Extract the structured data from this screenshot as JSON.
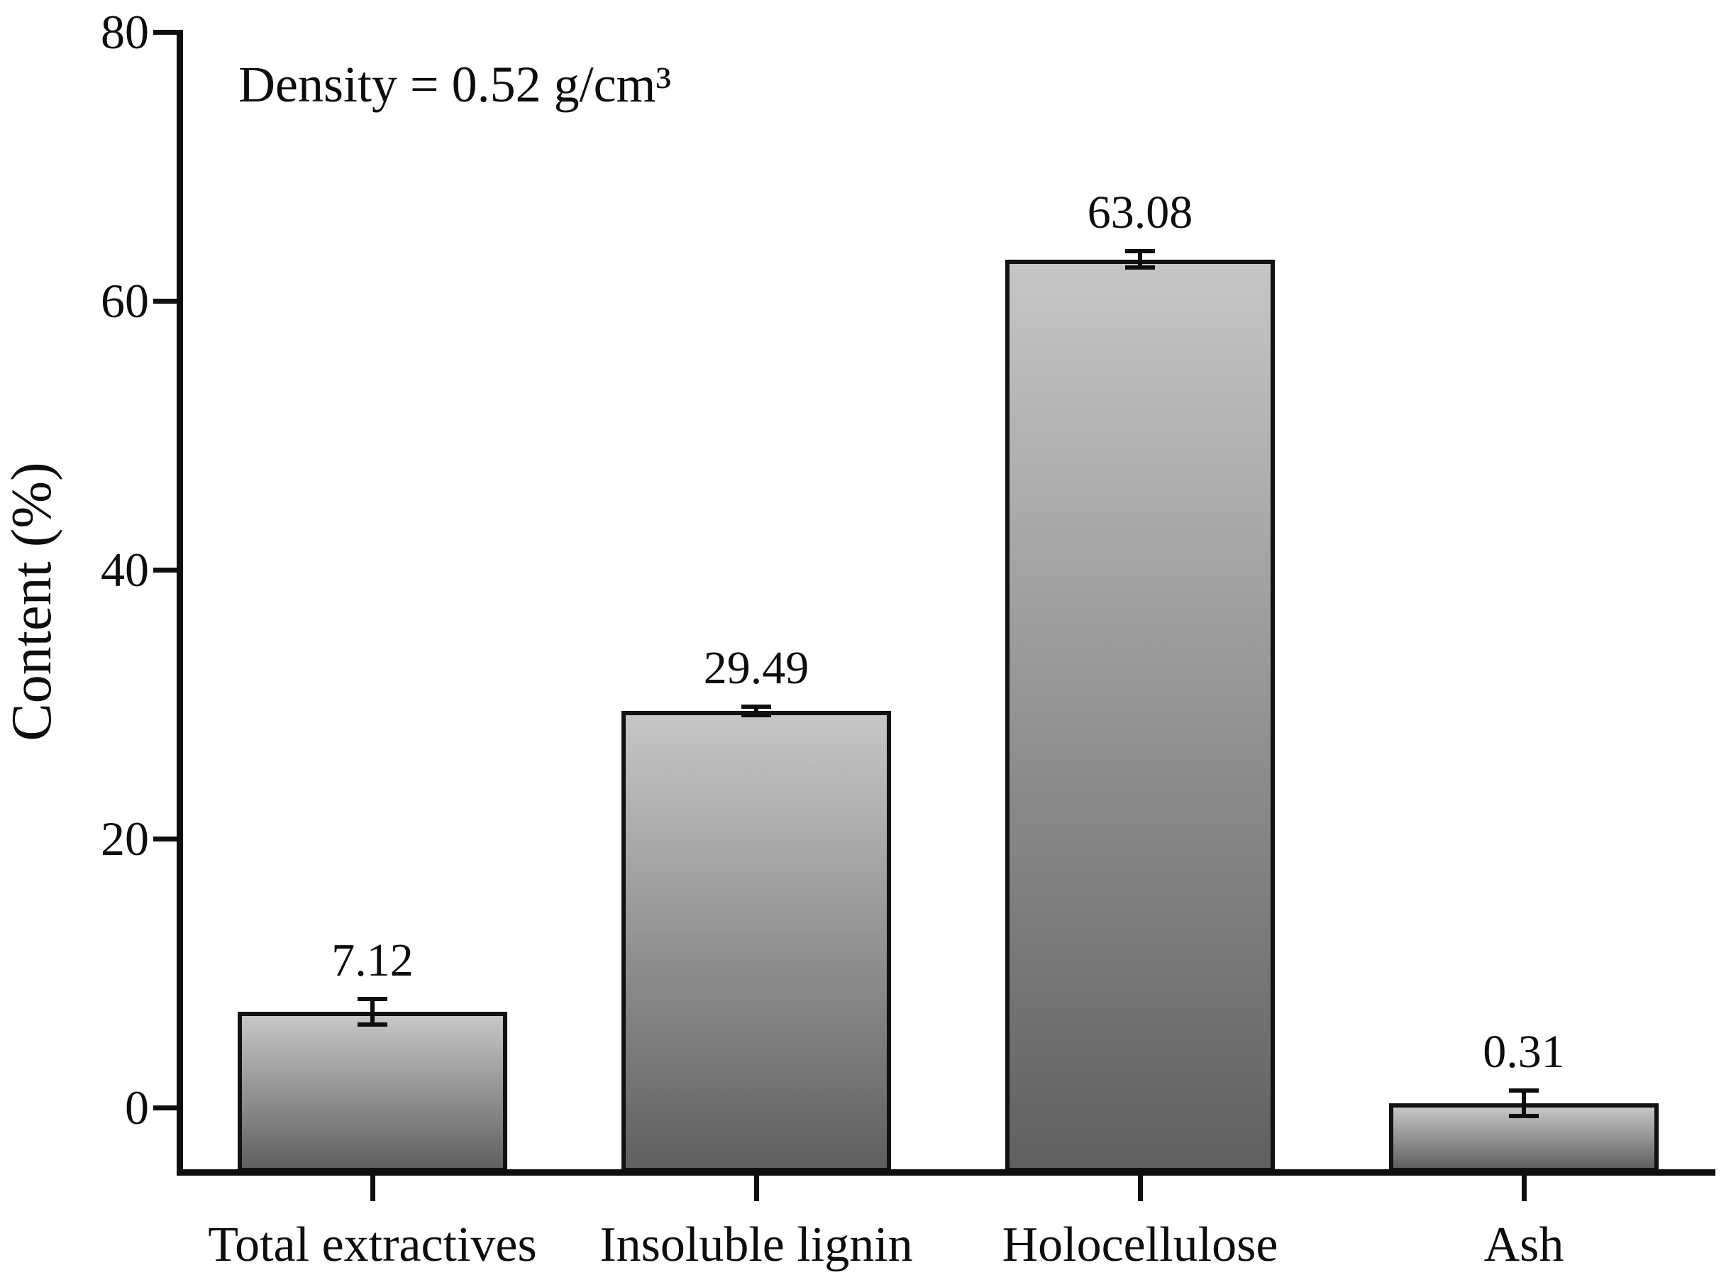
{
  "chart_data": {
    "type": "bar",
    "title": "",
    "annotation": "Density = 0.52 g/cm³",
    "ylabel": "Content (%)",
    "xlabel": "",
    "categories": [
      "Total extractives",
      "Insoluble lignin",
      "Holocellulose",
      "Ash"
    ],
    "values": [
      7.12,
      29.49,
      63.08,
      0.31
    ],
    "errors": [
      0.95,
      0.3,
      0.6,
      0.95
    ],
    "data_labels": [
      "7.12",
      "29.49",
      "63.08",
      "0.31"
    ],
    "yticks": [
      0,
      20,
      40,
      60,
      80
    ],
    "ytick_labels": [
      "0",
      "20",
      "40",
      "60",
      "80"
    ],
    "ylim": [
      -4.8,
      80
    ],
    "grid": false,
    "legend": null,
    "colors": {
      "bar_gradient_top": "#c6c6c6",
      "bar_gradient_bottom": "#606060",
      "bar_border": "#121212",
      "axis": "#0f0f0f",
      "text": "#0d0d0d",
      "background": "#ffffff"
    }
  }
}
